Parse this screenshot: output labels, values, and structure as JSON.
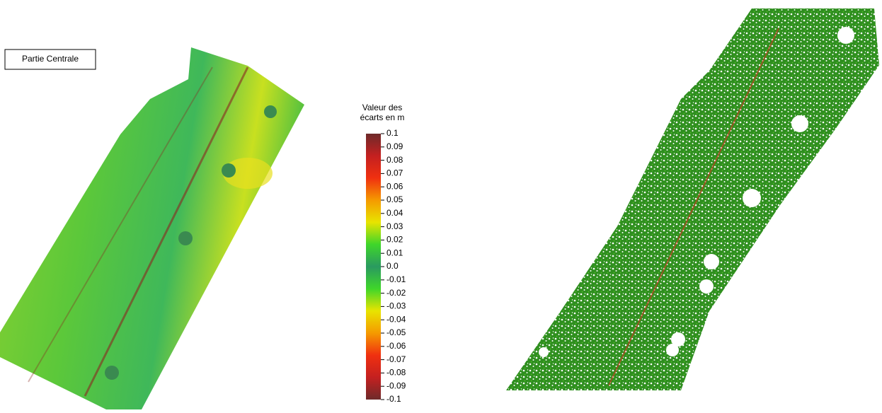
{
  "label": "Partie Centrale",
  "colorbar": {
    "title": [
      "Valeur des",
      "écarts en m"
    ],
    "lim": [
      -0.1,
      0.1
    ],
    "colors": [
      "#6e2a2a",
      "#c42020",
      "#f03010",
      "#f59a00",
      "#e8e400",
      "#3fd62a",
      "#2a9a60",
      "#3fd62a",
      "#e8e400",
      "#f59a00",
      "#f03010",
      "#c42020",
      "#6e2a2a"
    ],
    "ticks": [
      0.1,
      0.09,
      0.08,
      0.07,
      0.06,
      0.05,
      0.04,
      0.03,
      0.02,
      0.01,
      {
        "value": 0,
        "label": "0.0"
      },
      -0.01,
      -0.02,
      -0.03,
      -0.04,
      -0.05,
      -0.06,
      -0.07,
      -0.08,
      -0.09,
      -0.1
    ]
  }
}
